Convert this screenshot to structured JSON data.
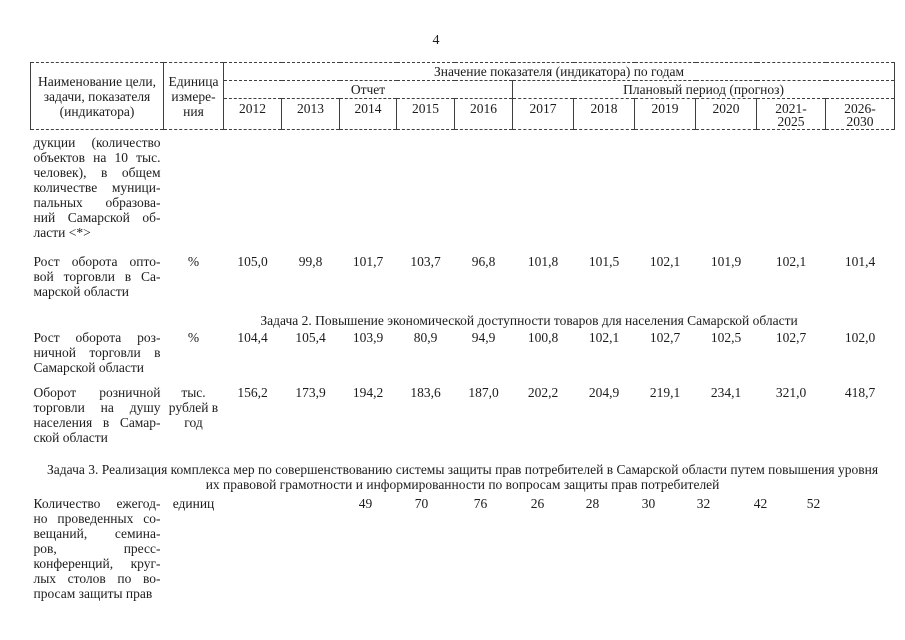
{
  "page": {
    "number": "4"
  },
  "table": {
    "header": {
      "col_name": "Наименование цели,\nзадачи, показателя\n(индикатора)",
      "col_unit": "Единица\nизмере-\nния",
      "values_title": "Значение показателя (индикатора) по годам",
      "report_label": "Отчет",
      "plan_label": "Плановый период (прогноз)",
      "years": [
        "2012",
        "2013",
        "2014",
        "2015",
        "2016",
        "2017",
        "2018",
        "2019",
        "2020",
        "2021-\n2025",
        "2026-\n2030"
      ]
    },
    "sections": {
      "task2": "Задача 2. Повышение экономической доступности товаров для населения Самарской области",
      "task3": "Задача 3. Реализация комплекса мер по совершенствованию системы защиты прав потребителей в Самарской области путем повышения уровня\nих правовой грамотности и информированности по вопросам защиты прав потребителей"
    },
    "rows": {
      "continuation": {
        "name_lines": [
          "дукции (количество",
          "объектов на 10 тыс.",
          "человек), в общем",
          "количестве муници-",
          "пальных образова-",
          "ний Самарской об-",
          "ласти <*>"
        ]
      },
      "wholesale": {
        "name_lines": [
          "Рост оборота опто-",
          "вой торговли в Са-",
          "марской области"
        ],
        "unit": "%",
        "values": [
          "105,0",
          "99,8",
          "101,7",
          "103,7",
          "96,8",
          "101,8",
          "101,5",
          "102,1",
          "101,9",
          "102,1",
          "101,4"
        ]
      },
      "retail_growth": {
        "name_lines": [
          "Рост оборота роз-",
          "ничной торговли в",
          "Самарской области"
        ],
        "unit": "%",
        "values": [
          "104,4",
          "105,4",
          "103,9",
          "80,9",
          "94,9",
          "100,8",
          "102,1",
          "102,7",
          "102,5",
          "102,7",
          "102,0"
        ]
      },
      "retail_per_capita": {
        "name_lines": [
          "Оборот розничной",
          "торговли на душу",
          "населения в Самар-",
          "ской области"
        ],
        "unit": "тыс.\nрублей в\nгод",
        "values": [
          "156,2",
          "173,9",
          "194,2",
          "183,6",
          "187,0",
          "202,2",
          "204,9",
          "219,1",
          "234,1",
          "321,0",
          "418,7"
        ]
      },
      "meetings": {
        "name_lines": [
          "Количество ежегод-",
          "но проведенных со-",
          "вещаний,     семина-",
          "ров,             пресс-",
          "конференций, круг-",
          "лых столов по во-",
          "просам защиты прав"
        ],
        "unit": "единиц",
        "values": [
          "49",
          "70",
          "76",
          "26",
          "28",
          "30",
          "32",
          "42",
          "52"
        ]
      }
    }
  }
}
